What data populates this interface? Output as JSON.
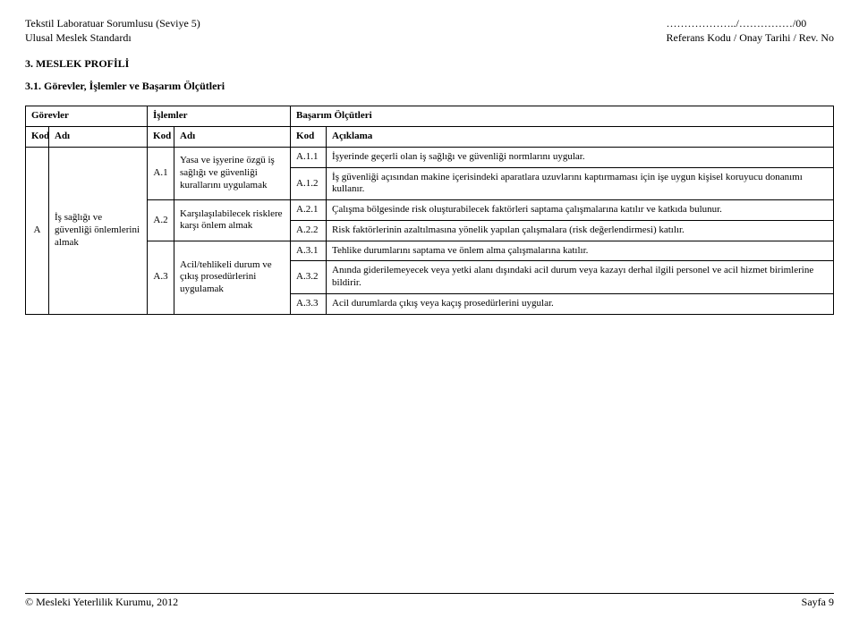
{
  "header": {
    "left_line1": "Tekstil Laboratuar Sorumlusu (Seviye 5)",
    "left_line2": "Ulusal Meslek Standardı",
    "right_line1": "………………../……………/00",
    "right_line2": "Referans Kodu / Onay Tarihi / Rev. No"
  },
  "section_heading": "3.   MESLEK PROFİLİ",
  "subsection_heading": "3.1. Görevler, İşlemler ve Başarım Ölçütleri",
  "table": {
    "group_headers": {
      "gorevler": "Görevler",
      "islemler": "İşlemler",
      "basarim": "Başarım Ölçütleri"
    },
    "col_headers": {
      "kod": "Kod",
      "adi": "Adı",
      "aciklama": "Açıklama"
    },
    "gorev": {
      "kod": "A",
      "adi": "İş sağlığı ve güvenliği önlemlerini almak"
    },
    "islemler": [
      {
        "kod": "A.1",
        "adi": "Yasa ve işyerine özgü iş sağlığı ve güvenliği kurallarını uygulamak"
      },
      {
        "kod": "A.2",
        "adi": "Karşılaşılabilecek risklere karşı önlem almak"
      },
      {
        "kod": "A.3",
        "adi": "Acil/tehlikeli durum ve çıkış prosedürlerini uygulamak"
      }
    ],
    "olcutler": [
      {
        "kod": "A.1.1",
        "acik": "İşyerinde geçerli olan iş sağlığı ve güvenliği normlarını uygular."
      },
      {
        "kod": "A.1.2",
        "acik": "İş güvenliği açısından makine içerisindeki aparatlara uzuvlarını kaptırmaması için işe uygun kişisel koruyucu donanımı kullanır."
      },
      {
        "kod": "A.2.1",
        "acik": "Çalışma bölgesinde risk oluşturabilecek faktörleri saptama çalışmalarına katılır ve katkıda bulunur."
      },
      {
        "kod": "A.2.2",
        "acik": "Risk faktörlerinin azaltılmasına yönelik yapılan çalışmalara (risk değerlendirmesi)  katılır."
      },
      {
        "kod": "A.3.1",
        "acik": "Tehlike durumlarını saptama ve önlem alma çalışmalarına katılır."
      },
      {
        "kod": "A.3.2",
        "acik": "Anında giderilemeyecek veya yetki alanı dışındaki acil durum veya kazayı derhal ilgili personel ve acil hizmet birimlerine bildirir."
      },
      {
        "kod": "A.3.3",
        "acik": "Acil durumlarda çıkış veya kaçış prosedürlerini uygular."
      }
    ]
  },
  "footer": {
    "left": "© Mesleki Yeterlilik Kurumu, 2012",
    "right": "Sayfa 9"
  }
}
